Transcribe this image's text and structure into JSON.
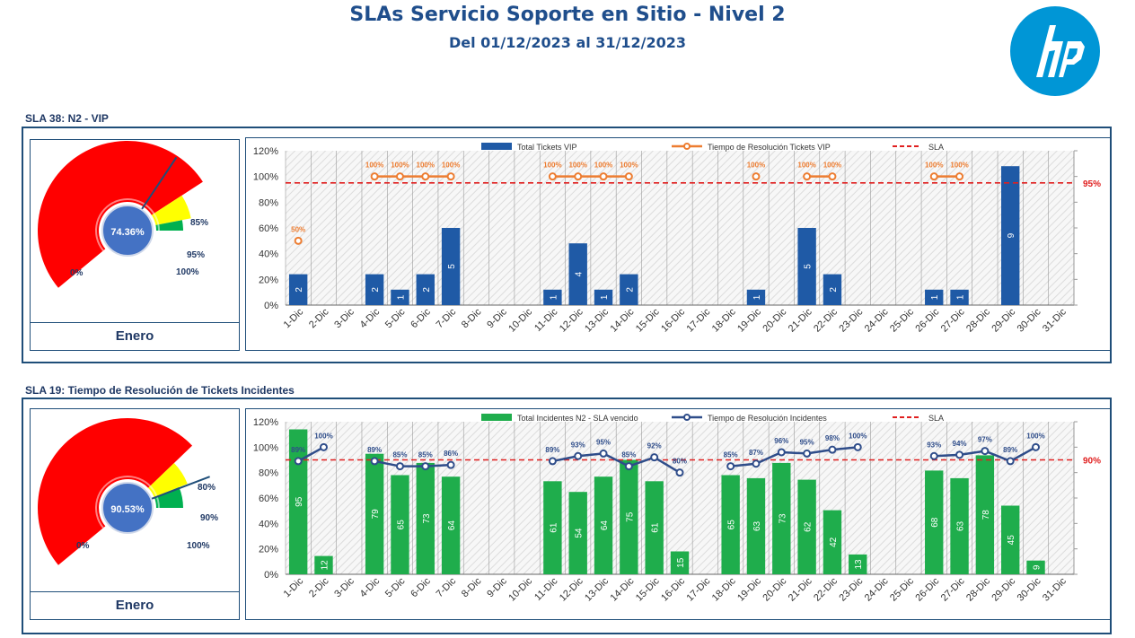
{
  "header": {
    "title": "SLAs Servicio Soporte en Sitio - Nivel 2",
    "subtitle": "Del 01/12/2023 al 31/12/2023",
    "logo_text": "hp",
    "brand_color": "#0096D6"
  },
  "sla38": {
    "label": "SLA 38: N2 - VIP",
    "gauge": {
      "value_label": "74.36%",
      "value": 74.36,
      "mark_low": "85%",
      "mark_mid": "95%",
      "mark_high": "100%",
      "mark_zero": "0%",
      "month": "Enero",
      "colors": {
        "red": "#FF0000",
        "yellow": "#FFFF00",
        "green": "#00B050",
        "center": "#4472C4"
      }
    }
  },
  "sla19": {
    "label": "SLA 19: Tiempo de Resolución de Tickets Incidentes",
    "gauge": {
      "value_label": "90.53%",
      "value": 90.53,
      "mark_low": "80%",
      "mark_mid": "90%",
      "mark_high": "100%",
      "mark_zero": "0%",
      "month": "Enero",
      "colors": {
        "red": "#FF0000",
        "yellow": "#FFFF00",
        "green": "#00B050",
        "center": "#4472C4"
      }
    }
  },
  "chart_data": [
    {
      "type": "bar",
      "categories": [
        "1-Dic",
        "2-Dic",
        "3-Dic",
        "4-Dic",
        "5-Dic",
        "6-Dic",
        "7-Dic",
        "8-Dic",
        "9-Dic",
        "10-Dic",
        "11-Dic",
        "12-Dic",
        "13-Dic",
        "14-Dic",
        "15-Dic",
        "16-Dic",
        "17-Dic",
        "18-Dic",
        "19-Dic",
        "20-Dic",
        "21-Dic",
        "22-Dic",
        "23-Dic",
        "24-Dic",
        "25-Dic",
        "26-Dic",
        "27-Dic",
        "28-Dic",
        "29-Dic",
        "30-Dic",
        "31-Dic"
      ],
      "series": [
        {
          "name": "Total Tickets VIP",
          "kind": "bar",
          "color": "#1F5AA6",
          "values": [
            2,
            null,
            null,
            2,
            1,
            2,
            5,
            null,
            null,
            null,
            1,
            4,
            1,
            2,
            null,
            null,
            null,
            null,
            1,
            null,
            5,
            2,
            null,
            null,
            null,
            1,
            1,
            null,
            9,
            null,
            null
          ]
        },
        {
          "name": "Tiempo de Resolución Tickets VIP",
          "kind": "line",
          "color": "#ED7D31",
          "values": [
            50,
            null,
            null,
            100,
            100,
            100,
            100,
            null,
            null,
            null,
            100,
            100,
            100,
            100,
            null,
            null,
            null,
            null,
            100,
            null,
            100,
            100,
            null,
            null,
            null,
            100,
            100,
            null,
            null,
            null,
            null
          ]
        },
        {
          "name": "SLA",
          "kind": "threshold",
          "color": "#E02020",
          "value": 95
        }
      ],
      "y_ticks": [
        "0%",
        "20%",
        "40%",
        "60%",
        "80%",
        "100%",
        "120%"
      ],
      "ylim": [
        0,
        120
      ],
      "bar_ylim": [
        0,
        10
      ],
      "sla_label": "95%",
      "grid": true
    },
    {
      "type": "bar",
      "categories": [
        "1-Dic",
        "2-Dic",
        "3-Dic",
        "4-Dic",
        "5-Dic",
        "6-Dic",
        "7-Dic",
        "8-Dic",
        "9-Dic",
        "10-Dic",
        "11-Dic",
        "12-Dic",
        "13-Dic",
        "14-Dic",
        "15-Dic",
        "16-Dic",
        "17-Dic",
        "18-Dic",
        "19-Dic",
        "20-Dic",
        "21-Dic",
        "22-Dic",
        "23-Dic",
        "24-Dic",
        "25-Dic",
        "26-Dic",
        "27-Dic",
        "28-Dic",
        "29-Dic",
        "30-Dic",
        "31-Dic"
      ],
      "series": [
        {
          "name": "Total Incidentes N2 - SLA  vencido",
          "kind": "bar",
          "color": "#1FAD4C",
          "values": [
            95,
            12,
            null,
            79,
            65,
            73,
            64,
            null,
            null,
            null,
            61,
            54,
            64,
            75,
            61,
            15,
            null,
            65,
            63,
            73,
            62,
            42,
            13,
            null,
            null,
            68,
            63,
            78,
            45,
            9,
            null
          ]
        },
        {
          "name": "Tiempo de Resolución Incidentes",
          "kind": "line",
          "color": "#2F4D8A",
          "values": [
            89,
            100,
            null,
            89,
            85,
            85,
            86,
            null,
            null,
            null,
            89,
            93,
            95,
            85,
            92,
            80,
            null,
            85,
            87,
            96,
            95,
            98,
            100,
            null,
            null,
            93,
            94,
            97,
            89,
            100,
            null
          ]
        },
        {
          "name": "SLA",
          "kind": "threshold",
          "color": "#E02020",
          "value": 90
        }
      ],
      "y_ticks": [
        "0%",
        "20%",
        "40%",
        "60%",
        "80%",
        "100%",
        "120%"
      ],
      "ylim": [
        0,
        120
      ],
      "bar_ylim": [
        0,
        100
      ],
      "sla_label": "90%",
      "grid": true
    }
  ]
}
